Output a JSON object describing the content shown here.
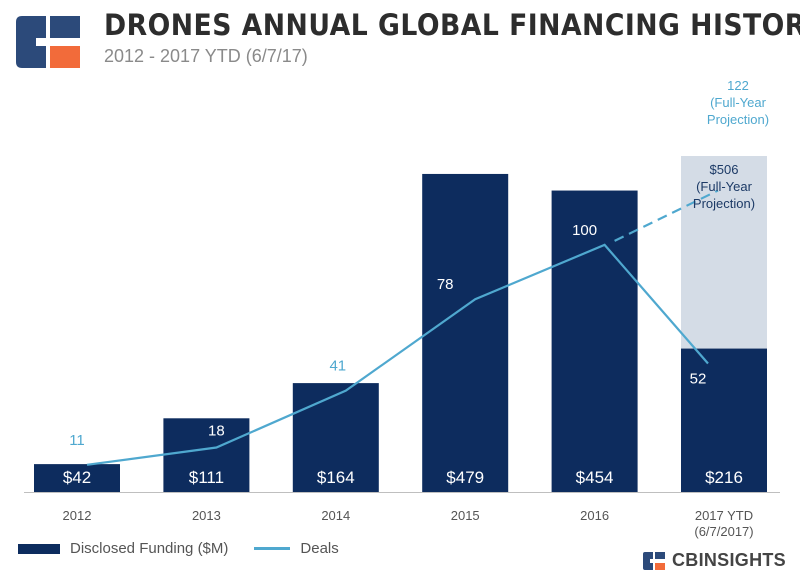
{
  "header": {
    "title": "DRONES ANNUAL GLOBAL FINANCING HISTORY",
    "subtitle": "2012 - 2017 YTD (6/7/17)"
  },
  "colors": {
    "bar": "#0d2c5e",
    "projection": "#d4dce6",
    "line": "#4fa8cf",
    "axis_text": "#555555"
  },
  "chart_data": {
    "type": "bar",
    "categories": [
      "2012",
      "2013",
      "2014",
      "2015",
      "2016",
      "2017 YTD\n(6/7/2017)"
    ],
    "series": [
      {
        "name": "Disclosed Funding ($M)",
        "kind": "bar",
        "values": [
          42,
          111,
          164,
          479,
          454,
          216
        ],
        "labels": [
          "$42",
          "$111",
          "$164",
          "$479",
          "$454",
          "$216"
        ]
      },
      {
        "name": "Deals",
        "kind": "line",
        "values": [
          11,
          18,
          41,
          78,
          100,
          52
        ],
        "labels": [
          "11",
          "18",
          "41",
          "78",
          "100",
          "52"
        ]
      }
    ],
    "projections": {
      "funding": {
        "value": 506,
        "label": "$506\n(Full-Year\nProjection)"
      },
      "deals": {
        "value": 122,
        "label": "122\n(Full-Year\nProjection)"
      }
    },
    "funding_ylim": [
      0,
      500
    ],
    "deals_ylim": [
      0,
      140
    ]
  },
  "legend": {
    "funding": "Disclosed Funding ($M)",
    "deals": "Deals"
  },
  "brand": {
    "name": "CBINSIGHTS"
  }
}
